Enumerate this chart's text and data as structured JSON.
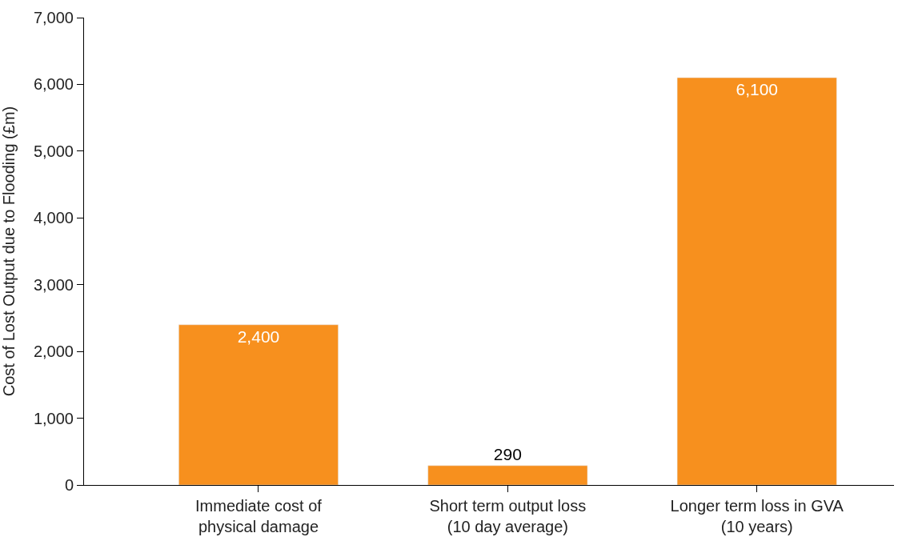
{
  "chart_data": {
    "type": "bar",
    "ylabel": "Cost of Lost Output due to Flooding (£m)",
    "categories": [
      "Immediate cost of\nphysical damage",
      "Short term output loss\n(10 day average)",
      "Longer term loss in GVA\n(10 years)"
    ],
    "values": [
      2400,
      290,
      6100
    ],
    "color": "#f7901e",
    "value_labels": [
      "2,400",
      "290",
      "6,100"
    ],
    "ylim": [
      0,
      7000
    ],
    "yticks": [
      0,
      {
        "value": 1000,
        "label": "1,000"
      },
      {
        "value": 2000,
        "label": "2,000"
      },
      {
        "value": 3000,
        "label": "3,000"
      },
      {
        "value": 4000,
        "label": "4,000"
      },
      {
        "value": 5000,
        "label": "5,000"
      },
      {
        "value": 6000,
        "label": "6,000"
      },
      {
        "value": 7000,
        "label": "7,000"
      }
    ],
    "legend": false
  }
}
